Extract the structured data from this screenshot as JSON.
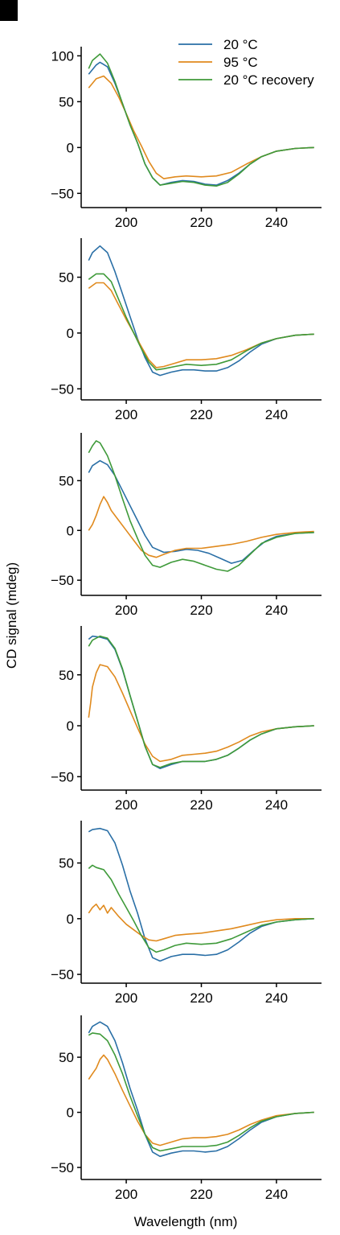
{
  "panel_label": "",
  "legend": {
    "items": [
      {
        "label": "20 °C",
        "color": "#2a6fa6"
      },
      {
        "label": "95 °C",
        "color": "#e08a1e"
      },
      {
        "label": "20 °C recovery",
        "color": "#3f9a3a"
      }
    ]
  },
  "axes": {
    "xlabel": "Wavelength (nm)",
    "ylabel": "CD signal (mdeg)",
    "xlim": [
      188,
      252
    ],
    "xticks": [
      200,
      220,
      240
    ]
  },
  "chart_data": [
    {
      "type": "line",
      "ylim": [
        -62,
        110
      ],
      "yticks": [
        100,
        50,
        0,
        -50
      ],
      "series": [
        {
          "name": "20 °C",
          "color": "#2a6fa6",
          "x": [
            190,
            192,
            193,
            195,
            197,
            199,
            201,
            203,
            205,
            207,
            209,
            212,
            215,
            218,
            221,
            224,
            227,
            230,
            233,
            236,
            240,
            245,
            250
          ],
          "y": [
            80,
            90,
            93,
            88,
            70,
            48,
            25,
            5,
            -18,
            -33,
            -41,
            -38,
            -36,
            -37,
            -40,
            -41,
            -36,
            -28,
            -18,
            -10,
            -4,
            -1,
            0
          ]
        },
        {
          "name": "95 °C",
          "color": "#e08a1e",
          "x": [
            190,
            192,
            194,
            196,
            198,
            200,
            202,
            204,
            206,
            208,
            210,
            213,
            216,
            220,
            224,
            228,
            232,
            236,
            240,
            245,
            250
          ],
          "y": [
            65,
            75,
            78,
            70,
            55,
            37,
            18,
            2,
            -15,
            -28,
            -34,
            -32,
            -31,
            -32,
            -31,
            -27,
            -18,
            -10,
            -4,
            -1,
            0
          ]
        },
        {
          "name": "20 °C recovery",
          "color": "#3f9a3a",
          "x": [
            190,
            191,
            193,
            195,
            197,
            199,
            201,
            203,
            205,
            207,
            209,
            212,
            215,
            218,
            221,
            224,
            227,
            230,
            233,
            236,
            240,
            245,
            250
          ],
          "y": [
            86,
            95,
            102,
            92,
            72,
            48,
            25,
            5,
            -18,
            -33,
            -41,
            -39,
            -37,
            -38,
            -41,
            -42,
            -38,
            -29,
            -18,
            -10,
            -4,
            -1,
            0
          ]
        }
      ]
    },
    {
      "type": "line",
      "ylim": [
        -57,
        85
      ],
      "yticks": [
        50,
        0,
        -50
      ],
      "series": [
        {
          "name": "20 °C",
          "color": "#2a6fa6",
          "x": [
            190,
            191,
            193,
            195,
            197,
            199,
            201,
            203,
            205,
            207,
            209,
            212,
            215,
            218,
            221,
            224,
            227,
            230,
            233,
            236,
            240,
            245,
            250
          ],
          "y": [
            65,
            72,
            78,
            72,
            55,
            35,
            15,
            -5,
            -22,
            -35,
            -38,
            -35,
            -33,
            -33,
            -34,
            -34,
            -31,
            -25,
            -17,
            -10,
            -5,
            -2,
            -1
          ]
        },
        {
          "name": "95 °C",
          "color": "#e08a1e",
          "x": [
            190,
            192,
            194,
            196,
            198,
            200,
            202,
            204,
            206,
            208,
            210,
            213,
            216,
            220,
            224,
            228,
            232,
            236,
            240,
            245,
            250
          ],
          "y": [
            40,
            45,
            45,
            38,
            25,
            12,
            0,
            -12,
            -24,
            -31,
            -30,
            -27,
            -24,
            -24,
            -23,
            -20,
            -15,
            -9,
            -5,
            -2,
            -1
          ]
        },
        {
          "name": "20 °C recovery",
          "color": "#3f9a3a",
          "x": [
            190,
            192,
            194,
            196,
            198,
            200,
            202,
            204,
            206,
            208,
            210,
            213,
            216,
            220,
            224,
            228,
            232,
            236,
            240,
            245,
            250
          ],
          "y": [
            48,
            53,
            53,
            46,
            30,
            14,
            0,
            -14,
            -26,
            -33,
            -32,
            -30,
            -28,
            -29,
            -28,
            -24,
            -16,
            -9,
            -5,
            -2,
            -1
          ]
        }
      ]
    },
    {
      "type": "line",
      "ylim": [
        -62,
        98
      ],
      "yticks": [
        50,
        0,
        -50
      ],
      "series": [
        {
          "name": "20 °C",
          "color": "#2a6fa6",
          "x": [
            190,
            191,
            193,
            195,
            197,
            199,
            201,
            203,
            205,
            207,
            210,
            213,
            216,
            219,
            222,
            225,
            228,
            231,
            234,
            237,
            240,
            245,
            250
          ],
          "y": [
            58,
            65,
            70,
            66,
            55,
            40,
            25,
            10,
            -5,
            -17,
            -22,
            -21,
            -19,
            -20,
            -23,
            -28,
            -33,
            -30,
            -20,
            -11,
            -6,
            -3,
            -2
          ]
        },
        {
          "name": "95 °C",
          "color": "#e08a1e",
          "x": [
            190,
            191,
            192,
            193,
            194,
            195,
            196,
            198,
            200,
            202,
            204,
            206,
            208,
            210,
            213,
            216,
            220,
            224,
            228,
            232,
            236,
            240,
            245,
            250
          ],
          "y": [
            0,
            6,
            15,
            26,
            34,
            28,
            20,
            10,
            0,
            -10,
            -20,
            -25,
            -27,
            -24,
            -20,
            -18,
            -18,
            -16,
            -14,
            -11,
            -7,
            -4,
            -2,
            -1
          ]
        },
        {
          "name": "20 °C recovery",
          "color": "#3f9a3a",
          "x": [
            190,
            191,
            192,
            193,
            195,
            197,
            199,
            201,
            203,
            205,
            207,
            209,
            212,
            215,
            218,
            221,
            224,
            227,
            230,
            233,
            236,
            240,
            245,
            250
          ],
          "y": [
            78,
            85,
            90,
            88,
            75,
            55,
            32,
            10,
            -8,
            -25,
            -35,
            -37,
            -32,
            -29,
            -31,
            -35,
            -39,
            -41,
            -35,
            -24,
            -13,
            -7,
            -3,
            -2
          ]
        }
      ]
    },
    {
      "type": "line",
      "ylim": [
        -60,
        98
      ],
      "yticks": [
        50,
        0,
        -50
      ],
      "series": [
        {
          "name": "20 °C",
          "color": "#2a6fa6",
          "x": [
            190,
            191,
            193,
            195,
            197,
            199,
            201,
            203,
            205,
            207,
            209,
            212,
            215,
            218,
            221,
            224,
            227,
            230,
            233,
            236,
            240,
            245,
            250
          ],
          "y": [
            85,
            88,
            87,
            85,
            75,
            55,
            30,
            5,
            -20,
            -38,
            -42,
            -38,
            -35,
            -35,
            -35,
            -33,
            -29,
            -22,
            -14,
            -8,
            -3,
            -1,
            0
          ]
        },
        {
          "name": "95 °C",
          "color": "#e08a1e",
          "x": [
            190,
            190.5,
            191,
            192,
            193,
            195,
            197,
            199,
            201,
            203,
            205,
            207,
            209,
            212,
            215,
            218,
            221,
            224,
            227,
            230,
            233,
            236,
            240,
            245,
            250
          ],
          "y": [
            8,
            22,
            38,
            52,
            60,
            58,
            48,
            32,
            15,
            -2,
            -18,
            -30,
            -35,
            -33,
            -29,
            -28,
            -27,
            -25,
            -21,
            -16,
            -10,
            -6,
            -3,
            -1,
            0
          ]
        },
        {
          "name": "20 °C recovery",
          "color": "#3f9a3a",
          "x": [
            190,
            191,
            193,
            195,
            197,
            199,
            201,
            203,
            205,
            207,
            209,
            212,
            215,
            218,
            221,
            224,
            227,
            230,
            233,
            236,
            240,
            245,
            250
          ],
          "y": [
            78,
            84,
            88,
            86,
            76,
            56,
            30,
            5,
            -20,
            -38,
            -41,
            -37,
            -35,
            -35,
            -35,
            -33,
            -29,
            -22,
            -14,
            -8,
            -3,
            -1,
            0
          ]
        }
      ]
    },
    {
      "type": "line",
      "ylim": [
        -55,
        88
      ],
      "yticks": [
        50,
        0,
        -50
      ],
      "series": [
        {
          "name": "20 °C",
          "color": "#2a6fa6",
          "x": [
            190,
            191,
            193,
            195,
            197,
            199,
            201,
            203,
            205,
            207,
            209,
            212,
            215,
            218,
            221,
            224,
            227,
            230,
            233,
            236,
            240,
            245,
            250
          ],
          "y": [
            78,
            80,
            81,
            79,
            68,
            48,
            25,
            5,
            -18,
            -35,
            -38,
            -34,
            -32,
            -32,
            -33,
            -32,
            -28,
            -21,
            -13,
            -7,
            -3,
            -1,
            0
          ]
        },
        {
          "name": "95 °C",
          "color": "#e08a1e",
          "x": [
            190,
            191,
            192,
            193,
            194,
            195,
            196,
            198,
            200,
            202,
            204,
            206,
            208,
            210,
            213,
            216,
            220,
            224,
            228,
            232,
            236,
            240,
            245,
            250
          ],
          "y": [
            5,
            10,
            13,
            8,
            12,
            5,
            10,
            2,
            -5,
            -10,
            -15,
            -19,
            -20,
            -18,
            -15,
            -14,
            -13,
            -11,
            -9,
            -6,
            -3,
            -1,
            0,
            0
          ]
        },
        {
          "name": "20 °C recovery",
          "color": "#3f9a3a",
          "x": [
            190,
            191,
            192,
            194,
            196,
            198,
            200,
            202,
            204,
            206,
            208,
            210,
            213,
            216,
            220,
            224,
            228,
            232,
            236,
            240,
            245,
            250
          ],
          "y": [
            45,
            48,
            46,
            44,
            35,
            22,
            10,
            -2,
            -15,
            -26,
            -30,
            -28,
            -24,
            -22,
            -23,
            -22,
            -18,
            -12,
            -6,
            -3,
            -1,
            0
          ]
        }
      ]
    },
    {
      "type": "line",
      "ylim": [
        -58,
        88
      ],
      "yticks": [
        50,
        0,
        -50
      ],
      "series": [
        {
          "name": "20 °C",
          "color": "#2a6fa6",
          "x": [
            190,
            191,
            193,
            195,
            197,
            199,
            201,
            203,
            205,
            207,
            209,
            212,
            215,
            218,
            221,
            224,
            227,
            230,
            233,
            236,
            240,
            245,
            250
          ],
          "y": [
            72,
            78,
            82,
            78,
            65,
            45,
            22,
            2,
            -20,
            -36,
            -40,
            -37,
            -35,
            -35,
            -36,
            -35,
            -31,
            -24,
            -16,
            -9,
            -4,
            -1,
            0
          ]
        },
        {
          "name": "95 °C",
          "color": "#e08a1e",
          "x": [
            190,
            191,
            192,
            193,
            194,
            195,
            197,
            199,
            201,
            203,
            205,
            207,
            209,
            212,
            215,
            218,
            221,
            224,
            227,
            230,
            233,
            236,
            240,
            245,
            250
          ],
          "y": [
            30,
            35,
            40,
            48,
            52,
            48,
            35,
            20,
            6,
            -8,
            -20,
            -28,
            -30,
            -27,
            -24,
            -23,
            -23,
            -22,
            -20,
            -16,
            -11,
            -7,
            -3,
            -1,
            0
          ]
        },
        {
          "name": "20 °C recovery",
          "color": "#3f9a3a",
          "x": [
            190,
            191,
            193,
            195,
            197,
            199,
            201,
            203,
            205,
            207,
            209,
            212,
            215,
            218,
            221,
            224,
            227,
            230,
            233,
            236,
            240,
            245,
            250
          ],
          "y": [
            70,
            72,
            71,
            65,
            52,
            35,
            15,
            -3,
            -20,
            -32,
            -35,
            -33,
            -31,
            -31,
            -31,
            -30,
            -27,
            -21,
            -14,
            -8,
            -4,
            -1,
            0
          ]
        }
      ]
    }
  ]
}
